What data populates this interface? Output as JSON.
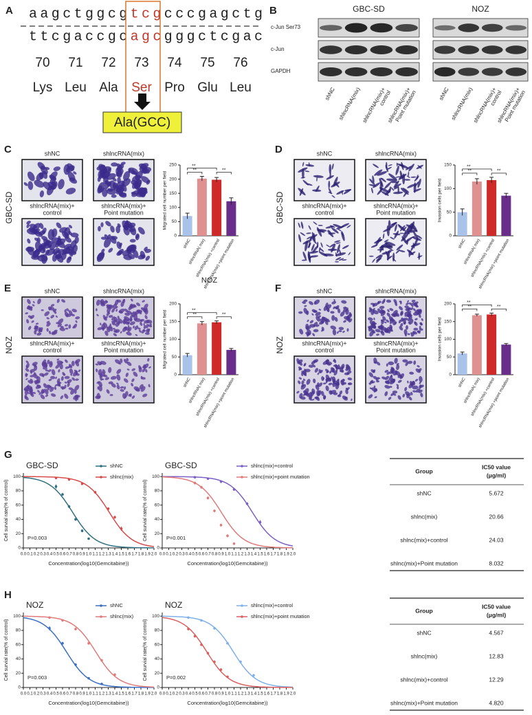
{
  "panel_labels": [
    "A",
    "B",
    "C",
    "D",
    "E",
    "F",
    "G",
    "H"
  ],
  "sequence": {
    "top": [
      "aagctggcg",
      "tcg",
      "cccgagctg"
    ],
    "bottom": [
      "ttcgaccgc",
      "agc",
      "gggctcgac"
    ],
    "positions": [
      70,
      71,
      72,
      73,
      74,
      75,
      76
    ],
    "amino_acids": [
      "Lys",
      "Leu",
      "Ala",
      "Ser",
      "Pro",
      "Glu",
      "Leu"
    ],
    "mutation": "Ala(GCC)"
  },
  "western_blot": {
    "groups": [
      "GBC-SD",
      "NOZ"
    ],
    "rows": [
      "c-Jun Ser73",
      "c-Jun",
      "GAPDH"
    ],
    "lanes": [
      [
        "shNC"
      ],
      [
        "shlncRNA(mix)"
      ],
      [
        "shlncRNA(mix)+",
        "control"
      ],
      [
        "shlncRNA(mix)+",
        "Point mutation"
      ]
    ]
  },
  "micrographs": [
    {
      "side_label": "GBC-SD",
      "labels": [
        [
          "shNC"
        ],
        [
          "shlncRNA(mix)"
        ],
        [
          "shlncRNA(mix)+",
          "control"
        ],
        [
          "shlncRNA(mix)+",
          "Point mutation"
        ]
      ]
    },
    {
      "side_label": "GBC-SD",
      "labels": [
        [
          "shNC"
        ],
        [
          "shlncRNA(mix)"
        ],
        [
          "shlncRNA(mix)+",
          "control"
        ],
        [
          "shlncRNA(mix)+",
          "Point mutation"
        ]
      ]
    },
    {
      "side_label": "NOZ",
      "labels": [
        [
          "shNC"
        ],
        [
          "shlncRNA(mix)"
        ],
        [
          "shlncRNA(mix)+",
          "control"
        ],
        [
          "shlncRNA(mix)+",
          "Point mutation"
        ]
      ]
    },
    {
      "side_label": "NOZ",
      "labels": [
        [
          "shNC"
        ],
        [
          "shlncRNA(mix)"
        ],
        [
          "shlncRNA(mix)+",
          "control"
        ],
        [
          "shlncRNA(mix)+",
          "Point mutation"
        ]
      ]
    }
  ],
  "chart_data": [
    {
      "type": "bar",
      "y_label": "Migrated cell number per field",
      "categories": [
        "shNC",
        "shlncRNA( mix)",
        "shlncRNA(mix) +control",
        "shlncRNA(mix) +point mutation"
      ],
      "values": [
        70,
        202,
        198,
        122
      ],
      "errors": [
        10,
        8,
        8,
        12
      ],
      "colors": [
        "#a9c2ea",
        "#e09090",
        "#cf2a2a",
        "#6a2e8a"
      ],
      "ylim": [
        0,
        250
      ],
      "yticks": [
        0,
        50,
        100,
        150,
        200,
        250
      ],
      "annotations": [
        "**",
        "**",
        "**"
      ]
    },
    {
      "type": "bar",
      "y_label": "Invasion cells per field",
      "categories": [
        "shNC",
        "shlncRNA( mix)",
        "shlncRNA(mix) +control",
        "shlncRNA(mix) +point mutation"
      ],
      "values": [
        50,
        115,
        118,
        85
      ],
      "errors": [
        7,
        6,
        6,
        5
      ],
      "colors": [
        "#a9c2ea",
        "#e09090",
        "#cf2a2a",
        "#6a2e8a"
      ],
      "ylim": [
        0,
        150
      ],
      "yticks": [
        0,
        50,
        100,
        150
      ],
      "annotations": [
        "**",
        "**",
        "**"
      ]
    },
    {
      "type": "bar",
      "title": "NOZ",
      "y_label": "Migrated cell number per field",
      "categories": [
        "shNC",
        "shlncRNA( mix)",
        "shlncRNA(mix) +control",
        "shlncRNA(mix) +point mutation"
      ],
      "values": [
        55,
        145,
        148,
        70
      ],
      "errors": [
        5,
        5,
        4,
        4
      ],
      "colors": [
        "#a9c2ea",
        "#e09090",
        "#cf2a2a",
        "#6a2e8a"
      ],
      "ylim": [
        0,
        200
      ],
      "yticks": [
        0,
        50,
        100,
        150,
        200
      ],
      "annotations": [
        "**",
        "**",
        "**"
      ]
    },
    {
      "type": "bar",
      "y_label": "Invasion cells per field",
      "categories": [
        "shNC",
        "shlncRNA( mix)",
        "shlncRNA(mix) +control",
        "shlncRNA(mix) +point mutation"
      ],
      "values": [
        60,
        168,
        170,
        85
      ],
      "errors": [
        4,
        3,
        4,
        3
      ],
      "colors": [
        "#a9c2ea",
        "#e09090",
        "#cf2a2a",
        "#6a2e8a"
      ],
      "ylim": [
        0,
        200
      ],
      "yticks": [
        0,
        50,
        100,
        150,
        200
      ],
      "annotations": [
        "**",
        "**",
        "**"
      ]
    },
    {
      "type": "scatter",
      "title": "GBC-SD",
      "x_label": "Concentration(log10(Gemcitabine))",
      "y_label": "Cell survial rate(% of control)",
      "annotation": "P=0.003",
      "xlim": [
        0,
        2
      ],
      "ylim": [
        0,
        105
      ],
      "yticks": [
        0,
        20,
        40,
        60,
        80,
        100
      ],
      "xticks": [
        {
          "value": 0,
          "label": "0.0"
        },
        0.1,
        0.2,
        0.3,
        0.4,
        0.5,
        0.6,
        0.7,
        0.8,
        0.9,
        {
          "value": 1,
          "label": "1.0"
        },
        1.1,
        1.2,
        1.3,
        1.4,
        1.5,
        1.6,
        1.7,
        1.8,
        1.9,
        {
          "value": 2,
          "label": "2.0"
        }
      ],
      "series": [
        {
          "name": "shNC",
          "color": "#2e6f80",
          "x": [
            0.5,
            0.6,
            0.7,
            0.8,
            0.9,
            1.0
          ],
          "values": [
            86,
            75,
            58,
            40,
            24,
            13
          ],
          "errors": [
            3,
            2,
            2,
            2,
            2,
            1
          ]
        },
        {
          "name": "shlnc(mix)",
          "color": "#d64a4a",
          "x": [
            0.5,
            0.7,
            0.9,
            1.1,
            1.3,
            1.4,
            1.5
          ],
          "values": [
            98,
            96,
            90,
            78,
            55,
            43,
            27
          ],
          "errors": [
            1,
            2,
            2,
            2,
            2,
            2,
            3
          ]
        }
      ]
    },
    {
      "type": "scatter",
      "title": "GBC-SD",
      "x_label": "Concentration(log10(Gemcitabine))",
      "y_label": "Cell survial rate(% of control)",
      "annotation": "P=0.001",
      "xlim": [
        0,
        2
      ],
      "ylim": [
        0,
        105
      ],
      "yticks": [
        0,
        20,
        40,
        60,
        80,
        100
      ],
      "xticks": [
        {
          "value": 0,
          "label": "0.0"
        },
        0.1,
        0.2,
        0.3,
        0.4,
        0.5,
        0.6,
        0.7,
        0.8,
        0.9,
        {
          "value": 1,
          "label": "1.0"
        },
        1.1,
        1.2,
        1.3,
        1.4,
        1.5,
        1.6,
        1.7,
        1.8,
        1.9,
        {
          "value": 2,
          "label": "2.0"
        }
      ],
      "series": [
        {
          "name": "shlnc(mix)+control",
          "color": "#7b5fc4",
          "x": [
            0.5,
            0.7,
            0.9,
            1.1,
            1.3,
            1.5
          ],
          "values": [
            99,
            97,
            93,
            82,
            62,
            36
          ],
          "errors": [
            1,
            1,
            2,
            2,
            2,
            3
          ]
        },
        {
          "name": "shlnc(mix)+point mutation",
          "color": "#e07a7a",
          "x": [
            0.5,
            0.6,
            0.7,
            0.8,
            0.9,
            1.0,
            1.1
          ],
          "values": [
            91,
            85,
            70,
            52,
            32,
            17,
            6
          ],
          "errors": [
            2,
            2,
            2,
            2,
            2,
            2,
            1
          ]
        }
      ]
    },
    {
      "type": "scatter",
      "title": "NOZ",
      "x_label": "Concentration(log10(Gemcitabine))",
      "y_label": "Cell survial rate(% of control)",
      "annotation": "P=0.003",
      "xlim": [
        0,
        2
      ],
      "ylim": [
        0,
        105
      ],
      "yticks": [
        0,
        20,
        40,
        60,
        80,
        100
      ],
      "xticks": [
        {
          "value": 0,
          "label": "0.0"
        },
        0.1,
        0.2,
        0.3,
        0.4,
        0.5,
        0.6,
        0.7,
        0.8,
        0.9,
        {
          "value": 1,
          "label": "1.0"
        },
        1.1,
        1.2,
        1.3,
        1.4,
        1.5,
        1.6,
        1.7,
        1.8,
        1.9,
        {
          "value": 2,
          "label": "2.0"
        }
      ],
      "series": [
        {
          "name": "shNC",
          "color": "#3a6fc4",
          "x": [
            0.4,
            0.6,
            0.8,
            1.0,
            1.2
          ],
          "values": [
            83,
            62,
            32,
            13,
            5
          ],
          "errors": [
            3,
            2,
            2,
            1,
            1
          ]
        },
        {
          "name": "shlnc(mix)",
          "color": "#e07a7a",
          "x": [
            0.4,
            0.6,
            0.8,
            1.0,
            1.2,
            1.4
          ],
          "values": [
            98,
            94,
            82,
            62,
            38,
            18
          ],
          "errors": [
            1,
            1,
            2,
            2,
            2,
            2
          ]
        }
      ]
    },
    {
      "type": "scatter",
      "title": "NOZ",
      "x_label": "Concentration(log10(Gemcitabine))",
      "y_label": "Cell survial rate(% of control)",
      "annotation": "P=0.002",
      "xlim": [
        0,
        2
      ],
      "ylim": [
        0,
        105
      ],
      "yticks": [
        0,
        20,
        40,
        60,
        80,
        100
      ],
      "xticks": [
        {
          "value": 0,
          "label": "0.0"
        },
        0.1,
        0.2,
        0.3,
        0.4,
        0.5,
        0.6,
        0.7,
        0.8,
        0.9,
        {
          "value": 1,
          "label": "1.0"
        },
        1.1,
        1.2,
        1.3,
        1.4,
        1.5,
        1.6,
        1.7,
        1.8,
        1.9,
        {
          "value": 2,
          "label": "2.0"
        }
      ],
      "series": [
        {
          "name": "shlnc(mix)+control",
          "color": "#7fb0e8",
          "x": [
            0.4,
            0.6,
            0.8,
            1.0,
            1.2,
            1.4
          ],
          "values": [
            98,
            94,
            83,
            62,
            36,
            17
          ],
          "errors": [
            1,
            1,
            2,
            2,
            2,
            2
          ]
        },
        {
          "name": "shlnc(mix)+point mutation",
          "color": "#d95f5f",
          "x": [
            0.4,
            0.5,
            0.6,
            0.7,
            0.8,
            0.9,
            1.0
          ],
          "values": [
            82,
            72,
            60,
            48,
            36,
            25,
            15
          ],
          "errors": [
            2,
            2,
            2,
            2,
            2,
            2,
            1
          ]
        }
      ]
    }
  ],
  "tables": [
    {
      "header": [
        "Group",
        [
          "IC50 value",
          "(μg/ml)"
        ]
      ],
      "rows": [
        [
          "shNC",
          "5.672"
        ],
        [
          "shlnc(mix)",
          "20.66"
        ],
        [
          "shlnc(mix)+control",
          "24.03"
        ],
        [
          "shlnc(mix)+Point mutation",
          "8.032"
        ]
      ]
    },
    {
      "header": [
        "Group",
        [
          "IC50 value",
          "(μg/ml)"
        ]
      ],
      "rows": [
        [
          "shNC",
          "4.567"
        ],
        [
          "shlnc(mix)",
          "12.83"
        ],
        [
          "shlnc(mix)+control",
          "12.29"
        ],
        [
          "shlnc(mix)+Point mutation",
          "4.820"
        ]
      ]
    }
  ]
}
